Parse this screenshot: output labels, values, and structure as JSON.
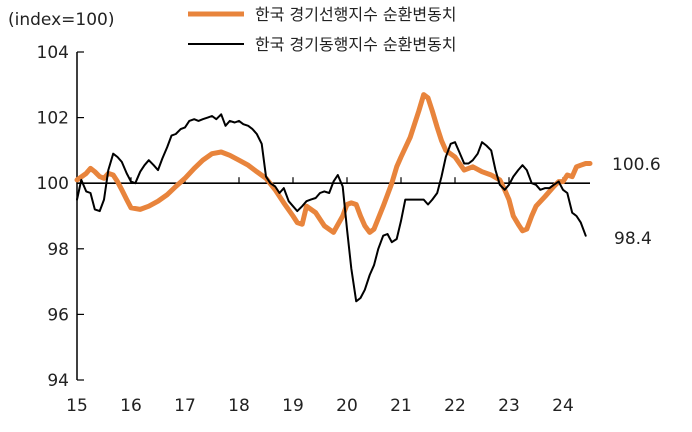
{
  "chart_data": {
    "type": "line",
    "ylabel": "(index=100)",
    "ylim": [
      94,
      104
    ],
    "yticks": [
      "94",
      "96",
      "98",
      "100",
      "102",
      "104"
    ],
    "xlim": [
      2015,
      2024.5
    ],
    "xticks": [
      "15",
      "16",
      "17",
      "18",
      "19",
      "20",
      "21",
      "22",
      "23",
      "24"
    ],
    "reference_line": 100,
    "legend_position": "top",
    "series": [
      {
        "name": "한국 경기선행지수 순환변동치",
        "color": "#E8843C",
        "end_label": "100.6",
        "points": [
          [
            2015.0,
            100.1
          ],
          [
            2015.17,
            100.3
          ],
          [
            2015.25,
            100.45
          ],
          [
            2015.33,
            100.35
          ],
          [
            2015.42,
            100.2
          ],
          [
            2015.5,
            100.15
          ],
          [
            2015.58,
            100.3
          ],
          [
            2015.67,
            100.25
          ],
          [
            2015.75,
            100.05
          ],
          [
            2015.83,
            99.8
          ],
          [
            2015.92,
            99.5
          ],
          [
            2016.0,
            99.25
          ],
          [
            2016.17,
            99.2
          ],
          [
            2016.33,
            99.3
          ],
          [
            2016.5,
            99.45
          ],
          [
            2016.67,
            99.65
          ],
          [
            2016.83,
            99.9
          ],
          [
            2017.0,
            100.15
          ],
          [
            2017.17,
            100.45
          ],
          [
            2017.33,
            100.7
          ],
          [
            2017.5,
            100.9
          ],
          [
            2017.67,
            100.95
          ],
          [
            2017.83,
            100.85
          ],
          [
            2018.0,
            100.7
          ],
          [
            2018.17,
            100.55
          ],
          [
            2018.33,
            100.35
          ],
          [
            2018.5,
            100.15
          ],
          [
            2018.67,
            99.8
          ],
          [
            2018.83,
            99.4
          ],
          [
            2019.0,
            99.0
          ],
          [
            2019.08,
            98.8
          ],
          [
            2019.17,
            98.75
          ],
          [
            2019.25,
            99.3
          ],
          [
            2019.42,
            99.1
          ],
          [
            2019.58,
            98.7
          ],
          [
            2019.75,
            98.5
          ],
          [
            2019.92,
            99.0
          ],
          [
            2020.0,
            99.35
          ],
          [
            2020.08,
            99.4
          ],
          [
            2020.17,
            99.35
          ],
          [
            2020.25,
            99.0
          ],
          [
            2020.33,
            98.7
          ],
          [
            2020.42,
            98.5
          ],
          [
            2020.5,
            98.6
          ],
          [
            2020.67,
            99.3
          ],
          [
            2020.83,
            100.0
          ],
          [
            2020.92,
            100.5
          ],
          [
            2021.0,
            100.8
          ],
          [
            2021.17,
            101.4
          ],
          [
            2021.33,
            102.2
          ],
          [
            2021.42,
            102.7
          ],
          [
            2021.5,
            102.6
          ],
          [
            2021.58,
            102.2
          ],
          [
            2021.67,
            101.7
          ],
          [
            2021.75,
            101.3
          ],
          [
            2021.83,
            101.0
          ],
          [
            2022.0,
            100.8
          ],
          [
            2022.17,
            100.4
          ],
          [
            2022.33,
            100.5
          ],
          [
            2022.5,
            100.35
          ],
          [
            2022.67,
            100.25
          ],
          [
            2022.83,
            100.1
          ],
          [
            2022.92,
            99.8
          ],
          [
            2023.0,
            99.5
          ],
          [
            2023.08,
            99.0
          ],
          [
            2023.17,
            98.75
          ],
          [
            2023.25,
            98.55
          ],
          [
            2023.33,
            98.6
          ],
          [
            2023.42,
            99.0
          ],
          [
            2023.5,
            99.3
          ],
          [
            2023.67,
            99.6
          ],
          [
            2023.83,
            99.9
          ],
          [
            2023.92,
            100.05
          ],
          [
            2024.0,
            100.05
          ],
          [
            2024.08,
            100.25
          ],
          [
            2024.17,
            100.2
          ],
          [
            2024.25,
            100.5
          ],
          [
            2024.33,
            100.55
          ],
          [
            2024.42,
            100.6
          ],
          [
            2024.5,
            100.6
          ]
        ]
      },
      {
        "name": "한국 경기동행지수 순환변동치",
        "color": "#000000",
        "end_label": "98.4",
        "points": [
          [
            2015.0,
            99.5
          ],
          [
            2015.08,
            100.1
          ],
          [
            2015.17,
            99.75
          ],
          [
            2015.25,
            99.7
          ],
          [
            2015.33,
            99.2
          ],
          [
            2015.42,
            99.15
          ],
          [
            2015.5,
            99.5
          ],
          [
            2015.58,
            100.4
          ],
          [
            2015.67,
            100.9
          ],
          [
            2015.75,
            100.8
          ],
          [
            2015.83,
            100.65
          ],
          [
            2015.92,
            100.3
          ],
          [
            2016.0,
            100.05
          ],
          [
            2016.08,
            100.0
          ],
          [
            2016.17,
            100.35
          ],
          [
            2016.25,
            100.55
          ],
          [
            2016.33,
            100.7
          ],
          [
            2016.42,
            100.55
          ],
          [
            2016.5,
            100.4
          ],
          [
            2016.58,
            100.75
          ],
          [
            2016.67,
            101.1
          ],
          [
            2016.75,
            101.45
          ],
          [
            2016.83,
            101.5
          ],
          [
            2016.92,
            101.65
          ],
          [
            2017.0,
            101.7
          ],
          [
            2017.08,
            101.9
          ],
          [
            2017.17,
            101.95
          ],
          [
            2017.25,
            101.9
          ],
          [
            2017.33,
            101.95
          ],
          [
            2017.42,
            102.0
          ],
          [
            2017.5,
            102.05
          ],
          [
            2017.58,
            101.95
          ],
          [
            2017.67,
            102.1
          ],
          [
            2017.75,
            101.75
          ],
          [
            2017.83,
            101.9
          ],
          [
            2017.92,
            101.85
          ],
          [
            2018.0,
            101.9
          ],
          [
            2018.08,
            101.8
          ],
          [
            2018.17,
            101.75
          ],
          [
            2018.25,
            101.65
          ],
          [
            2018.33,
            101.5
          ],
          [
            2018.42,
            101.2
          ],
          [
            2018.5,
            100.2
          ],
          [
            2018.58,
            100.0
          ],
          [
            2018.67,
            99.9
          ],
          [
            2018.75,
            99.7
          ],
          [
            2018.83,
            99.85
          ],
          [
            2018.92,
            99.45
          ],
          [
            2019.0,
            99.3
          ],
          [
            2019.08,
            99.15
          ],
          [
            2019.17,
            99.3
          ],
          [
            2019.25,
            99.45
          ],
          [
            2019.33,
            99.5
          ],
          [
            2019.42,
            99.55
          ],
          [
            2019.5,
            99.7
          ],
          [
            2019.58,
            99.75
          ],
          [
            2019.67,
            99.7
          ],
          [
            2019.75,
            100.05
          ],
          [
            2019.83,
            100.25
          ],
          [
            2019.92,
            99.9
          ],
          [
            2020.0,
            98.6
          ],
          [
            2020.08,
            97.4
          ],
          [
            2020.17,
            96.4
          ],
          [
            2020.25,
            96.5
          ],
          [
            2020.33,
            96.75
          ],
          [
            2020.42,
            97.2
          ],
          [
            2020.5,
            97.5
          ],
          [
            2020.58,
            98.0
          ],
          [
            2020.67,
            98.4
          ],
          [
            2020.75,
            98.45
          ],
          [
            2020.83,
            98.2
          ],
          [
            2020.92,
            98.3
          ],
          [
            2021.0,
            98.85
          ],
          [
            2021.08,
            99.5
          ],
          [
            2021.17,
            99.5
          ],
          [
            2021.25,
            99.5
          ],
          [
            2021.33,
            99.5
          ],
          [
            2021.42,
            99.5
          ],
          [
            2021.5,
            99.35
          ],
          [
            2021.58,
            99.5
          ],
          [
            2021.67,
            99.7
          ],
          [
            2021.75,
            100.2
          ],
          [
            2021.83,
            100.8
          ],
          [
            2021.92,
            101.2
          ],
          [
            2022.0,
            101.25
          ],
          [
            2022.08,
            100.95
          ],
          [
            2022.17,
            100.6
          ],
          [
            2022.25,
            100.6
          ],
          [
            2022.33,
            100.7
          ],
          [
            2022.42,
            100.9
          ],
          [
            2022.5,
            101.25
          ],
          [
            2022.58,
            101.15
          ],
          [
            2022.67,
            101.0
          ],
          [
            2022.75,
            100.4
          ],
          [
            2022.83,
            99.95
          ],
          [
            2022.92,
            99.8
          ],
          [
            2023.0,
            99.95
          ],
          [
            2023.08,
            100.2
          ],
          [
            2023.17,
            100.4
          ],
          [
            2023.25,
            100.55
          ],
          [
            2023.33,
            100.4
          ],
          [
            2023.42,
            100.0
          ],
          [
            2023.5,
            99.95
          ],
          [
            2023.58,
            99.8
          ],
          [
            2023.67,
            99.85
          ],
          [
            2023.75,
            99.85
          ],
          [
            2023.83,
            99.95
          ],
          [
            2023.92,
            100.05
          ],
          [
            2024.0,
            99.8
          ],
          [
            2024.08,
            99.7
          ],
          [
            2024.17,
            99.1
          ],
          [
            2024.25,
            99.0
          ],
          [
            2024.33,
            98.8
          ],
          [
            2024.42,
            98.4
          ]
        ]
      }
    ]
  }
}
